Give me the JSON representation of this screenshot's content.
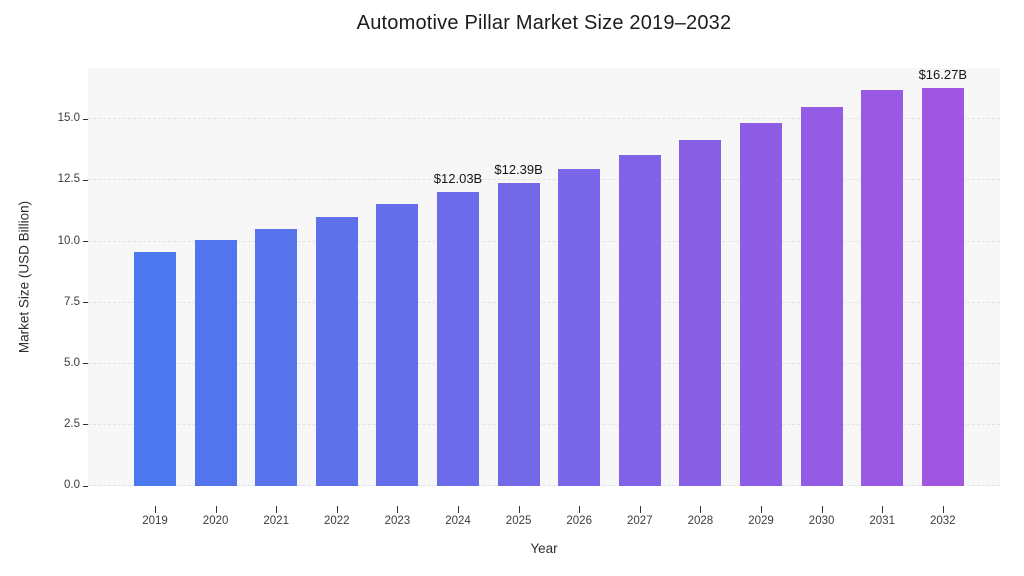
{
  "title": "Automotive Pillar Market Size 2019–2032",
  "chart_data": {
    "type": "bar",
    "title": "Automotive Pillar Market Size 2019–2032",
    "xlabel": "Year",
    "ylabel": "Market Size (USD Billion)",
    "categories": [
      "2019",
      "2020",
      "2021",
      "2022",
      "2023",
      "2024",
      "2025",
      "2026",
      "2027",
      "2028",
      "2029",
      "2030",
      "2031",
      "2032"
    ],
    "values": [
      9.56,
      10.05,
      10.5,
      11.0,
      11.52,
      12.03,
      12.39,
      12.95,
      13.56,
      14.16,
      14.84,
      15.52,
      16.2,
      16.27
    ],
    "bar_labels": [
      "",
      "",
      "",
      "",
      "",
      "$12.03B",
      "$12.39B",
      "",
      "",
      "",
      "",
      "",
      "",
      "$16.27B"
    ],
    "ylim": [
      0,
      17.1
    ],
    "ytick_values": [
      0,
      2.5,
      5,
      7.5,
      10,
      12.5,
      15
    ],
    "ytick_labels": [
      "0.0",
      "2.5",
      "5.0",
      "7.5",
      "10.0",
      "12.5",
      "15.0"
    ],
    "grid": "horizontal-dashed",
    "legend": "none",
    "colors": {
      "bar_gradient_start": "#4b78ee",
      "bar_gradient_end": "#a156e2",
      "panel_background": "#f7f7f8",
      "gridline": "#e2e2e6"
    }
  }
}
